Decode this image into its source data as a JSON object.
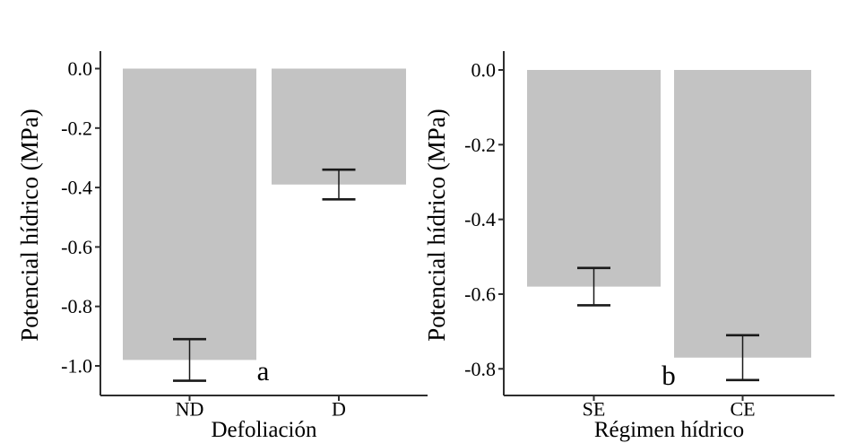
{
  "figure": {
    "background": "#ffffff",
    "description_labels": {
      "panel_a": "a",
      "panel_b": "b"
    }
  },
  "style": {
    "bar_fill": "#c3c3c3",
    "axis_color": "#2e2e2e",
    "error_bar_color": "#1a1a1a",
    "text_color": "#000000"
  },
  "chart_data": [
    {
      "type": "bar",
      "panel_label": "a",
      "title": "",
      "xlabel": "Defoliación",
      "ylabel": "Potencial hídrico (MPa)",
      "categories": [
        "ND",
        "D"
      ],
      "values": [
        -0.98,
        -0.39
      ],
      "error_high": [
        -0.91,
        -0.34
      ],
      "error_low": [
        -1.05,
        -0.44
      ],
      "yticks": [
        0.0,
        -0.2,
        -0.4,
        -0.6,
        -0.8,
        -1.0
      ],
      "ytick_labels": [
        "0.0",
        "-0.2",
        "-0.4",
        "-0.6",
        "-0.8",
        "-1.0"
      ],
      "ylim": [
        -1.1,
        0.06
      ],
      "grid": false,
      "legend": "none",
      "bar_color": "#c3c3c3"
    },
    {
      "type": "bar",
      "panel_label": "b",
      "title": "",
      "xlabel": "Régimen hídrico",
      "ylabel": "Potencial hídrico (MPa)",
      "categories": [
        "SE",
        "CE"
      ],
      "values": [
        -0.58,
        -0.77
      ],
      "error_high": [
        -0.53,
        -0.71
      ],
      "error_low": [
        -0.63,
        -0.83
      ],
      "yticks": [
        0.0,
        -0.2,
        -0.4,
        -0.6,
        -0.8
      ],
      "ytick_labels": [
        "0.0",
        "-0.2",
        "-0.4",
        "-0.6",
        "-0.8"
      ],
      "ylim": [
        -0.87,
        0.05
      ],
      "grid": false,
      "legend": "none",
      "bar_color": "#c3c3c3"
    }
  ]
}
